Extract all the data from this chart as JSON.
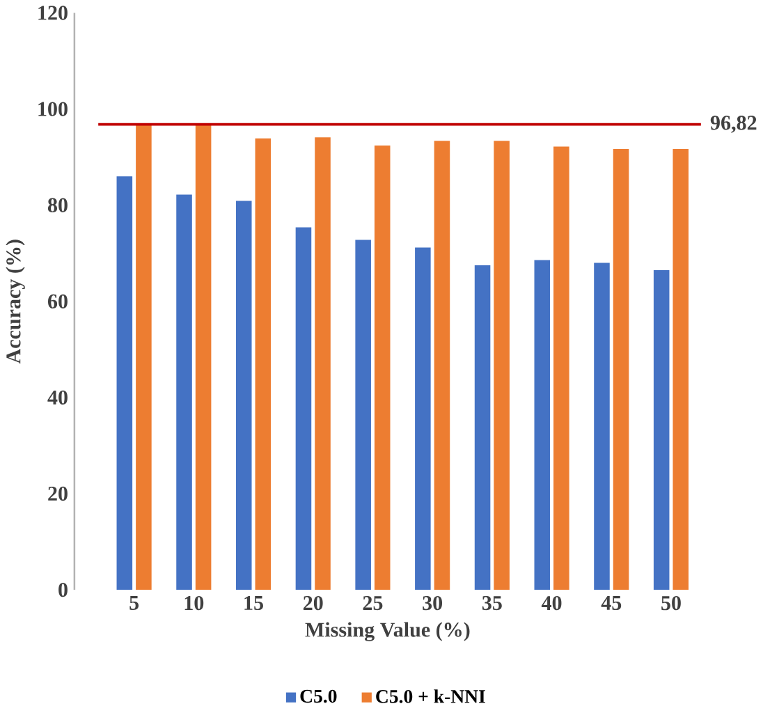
{
  "chart_data": {
    "type": "bar",
    "xlabel": "Missing Value (%)",
    "ylabel": "Accuracy (%)",
    "categories": [
      "5",
      "10",
      "15",
      "20",
      "25",
      "30",
      "35",
      "40",
      "45",
      "50"
    ],
    "series": [
      {
        "name": "C5.0",
        "color": "#4472c4",
        "values": [
          86.0,
          82.2,
          80.9,
          75.4,
          72.8,
          71.2,
          67.5,
          68.6,
          68.0,
          66.5
        ]
      },
      {
        "name": "C5.0 + k-NNI",
        "color": "#ed7d31",
        "values": [
          96.8,
          96.8,
          93.9,
          94.1,
          92.4,
          93.4,
          93.4,
          92.2,
          91.7,
          91.7
        ]
      }
    ],
    "ylim": [
      0,
      120
    ],
    "yticks": [
      0,
      20,
      40,
      60,
      80,
      100,
      120
    ],
    "legend": "bottom",
    "ref_lines": [
      {
        "axis": "y",
        "value": 96.82,
        "label": "96,82",
        "color": "#c00000"
      }
    ]
  }
}
